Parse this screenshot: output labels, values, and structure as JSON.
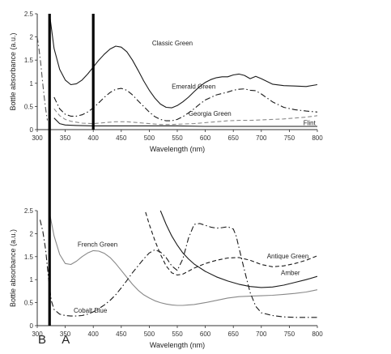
{
  "chart_data": [
    {
      "type": "line",
      "xlabel": "Wavelength (nm)",
      "ylabel": "Bottle absorbance (a.u.)",
      "xlim": [
        300,
        800
      ],
      "ylim": [
        0,
        2.5
      ],
      "xticks": [
        "300",
        "350",
        "400",
        "450",
        "500",
        "550",
        "600",
        "650",
        "700",
        "750",
        "800"
      ],
      "yticks": [
        "0",
        "0.5",
        "1",
        "1.5",
        "2",
        "2.5"
      ],
      "series": [
        {
          "name": "Classic Green",
          "color": "#1a1a1a",
          "dash": "solid",
          "x": [
            322,
            330,
            340,
            350,
            360,
            370,
            380,
            390,
            400,
            410,
            420,
            430,
            440,
            450,
            460,
            470,
            480,
            490,
            500,
            510,
            520,
            530,
            540,
            550,
            560,
            570,
            580,
            590,
            600,
            610,
            620,
            630,
            640,
            650,
            660,
            670,
            680,
            690,
            700,
            720,
            740,
            760,
            780,
            800
          ],
          "y": [
            2.5,
            1.75,
            1.3,
            1.07,
            0.97,
            0.99,
            1.07,
            1.2,
            1.35,
            1.5,
            1.63,
            1.74,
            1.8,
            1.78,
            1.68,
            1.5,
            1.28,
            1.05,
            0.85,
            0.68,
            0.55,
            0.48,
            0.47,
            0.52,
            0.6,
            0.7,
            0.82,
            0.93,
            1.02,
            1.08,
            1.12,
            1.14,
            1.14,
            1.18,
            1.2,
            1.17,
            1.1,
            1.15,
            1.1,
            0.98,
            0.95,
            0.94,
            0.93,
            0.97
          ]
        },
        {
          "name": "Emerald Green",
          "color": "#1a1a1a",
          "dash": "dashdot",
          "x": [
            330,
            340,
            350,
            360,
            370,
            380,
            390,
            400,
            410,
            420,
            430,
            440,
            450,
            460,
            470,
            480,
            490,
            500,
            510,
            520,
            530,
            540,
            550,
            560,
            570,
            580,
            590,
            600,
            620,
            640,
            650,
            660,
            670,
            680,
            690,
            700,
            720,
            740,
            760,
            780,
            800
          ],
          "y": [
            0.7,
            0.45,
            0.33,
            0.29,
            0.29,
            0.32,
            0.38,
            0.47,
            0.58,
            0.7,
            0.8,
            0.87,
            0.89,
            0.85,
            0.75,
            0.62,
            0.5,
            0.38,
            0.28,
            0.22,
            0.19,
            0.19,
            0.22,
            0.28,
            0.36,
            0.45,
            0.55,
            0.64,
            0.75,
            0.81,
            0.85,
            0.87,
            0.88,
            0.85,
            0.84,
            0.77,
            0.6,
            0.48,
            0.43,
            0.4,
            0.38
          ]
        },
        {
          "name": "Georgia Green",
          "color": "#8a8a8a",
          "dash": "dashed",
          "x": [
            330,
            340,
            350,
            360,
            380,
            400,
            420,
            440,
            460,
            480,
            500,
            520,
            540,
            560,
            580,
            600,
            620,
            640,
            660,
            680,
            700,
            720,
            740,
            760,
            780,
            800
          ],
          "y": [
            0.45,
            0.3,
            0.22,
            0.18,
            0.14,
            0.13,
            0.15,
            0.17,
            0.17,
            0.15,
            0.13,
            0.11,
            0.11,
            0.12,
            0.13,
            0.15,
            0.17,
            0.19,
            0.2,
            0.2,
            0.21,
            0.22,
            0.23,
            0.25,
            0.27,
            0.3
          ]
        },
        {
          "name": "Flint",
          "color": "#1a1a1a",
          "dash": "solid",
          "x": [
            330,
            340,
            350,
            370,
            400,
            450,
            500,
            550,
            600,
            650,
            700,
            750,
            800
          ],
          "y": [
            0.25,
            0.13,
            0.1,
            0.09,
            0.08,
            0.08,
            0.08,
            0.08,
            0.07,
            0.07,
            0.07,
            0.07,
            0.07
          ]
        },
        {
          "name": "",
          "color": "#555555",
          "dash": "dashdot",
          "x": [
            300,
            303,
            306,
            309,
            312,
            315,
            318
          ],
          "y": [
            2.0,
            1.75,
            1.45,
            1.1,
            0.75,
            0.45,
            0.2
          ]
        }
      ],
      "labels": [
        {
          "text": "Classic Green",
          "x": 505,
          "y": 1.82
        },
        {
          "text": "Emerald Green",
          "x": 540,
          "y": 0.88
        },
        {
          "text": "Georgia Green",
          "x": 570,
          "y": 0.3
        },
        {
          "text": "Flint",
          "x": 775,
          "y": 0.1
        }
      ]
    },
    {
      "type": "line",
      "xlabel": "Wavelength (nm)",
      "ylabel": "Bottle absorbance (a.u.)",
      "xlim": [
        300,
        800
      ],
      "ylim": [
        0,
        2.5
      ],
      "xticks": [
        "300",
        "350",
        "400",
        "450",
        "500",
        "550",
        "600",
        "650",
        "700",
        "750",
        "800"
      ],
      "yticks": [
        "0",
        "0.5",
        "1",
        "1.5",
        "2",
        "2.5"
      ],
      "series": [
        {
          "name": "French Green",
          "color": "#888888",
          "dash": "solid",
          "x": [
            322,
            330,
            340,
            350,
            360,
            370,
            380,
            390,
            400,
            410,
            420,
            430,
            440,
            450,
            460,
            470,
            480,
            490,
            500,
            510,
            520,
            530,
            540,
            550,
            560,
            570,
            580,
            600,
            620,
            640,
            660,
            680,
            700,
            720,
            740,
            760,
            780,
            800
          ],
          "y": [
            2.45,
            1.95,
            1.55,
            1.35,
            1.33,
            1.4,
            1.5,
            1.58,
            1.63,
            1.62,
            1.57,
            1.48,
            1.35,
            1.2,
            1.05,
            0.9,
            0.77,
            0.67,
            0.6,
            0.54,
            0.5,
            0.47,
            0.45,
            0.44,
            0.44,
            0.45,
            0.46,
            0.5,
            0.55,
            0.6,
            0.63,
            0.64,
            0.65,
            0.66,
            0.68,
            0.7,
            0.73,
            0.78
          ]
        },
        {
          "name": "Cobalt Blue",
          "color": "#1a1a1a",
          "dash": "dashdot",
          "x": [
            305,
            310,
            315,
            320,
            325,
            330,
            340,
            350,
            360,
            370,
            380,
            390,
            400,
            410,
            420,
            430,
            440,
            450,
            460,
            470,
            480,
            490,
            500,
            510,
            520,
            530,
            540,
            550,
            560,
            570,
            580,
            590,
            600,
            610,
            620,
            630,
            640,
            650,
            655,
            660,
            670,
            680,
            690,
            700,
            720,
            740,
            760,
            780,
            800
          ],
          "y": [
            2.3,
            2.05,
            1.65,
            1.05,
            0.55,
            0.35,
            0.25,
            0.22,
            0.21,
            0.21,
            0.22,
            0.25,
            0.3,
            0.37,
            0.45,
            0.55,
            0.67,
            0.82,
            0.98,
            1.15,
            1.3,
            1.45,
            1.58,
            1.65,
            1.6,
            1.48,
            1.3,
            1.2,
            1.45,
            1.9,
            2.2,
            2.22,
            2.18,
            2.14,
            2.12,
            2.13,
            2.15,
            2.1,
            1.95,
            1.7,
            1.2,
            0.72,
            0.42,
            0.28,
            0.22,
            0.19,
            0.18,
            0.18,
            0.18
          ]
        },
        {
          "name": "Antique Green",
          "color": "#1a1a1a",
          "dash": "dashed",
          "x": [
            490,
            500,
            510,
            520,
            530,
            540,
            550,
            560,
            580,
            600,
            620,
            640,
            660,
            680,
            700,
            720,
            740,
            760,
            780,
            800
          ],
          "y": [
            2.6,
            2.2,
            1.85,
            1.55,
            1.3,
            1.15,
            1.1,
            1.12,
            1.25,
            1.35,
            1.42,
            1.47,
            1.48,
            1.42,
            1.33,
            1.28,
            1.3,
            1.35,
            1.42,
            1.52
          ]
        },
        {
          "name": "Amber",
          "color": "#1a1a1a",
          "dash": "solid",
          "x": [
            520,
            530,
            540,
            550,
            560,
            570,
            580,
            600,
            620,
            640,
            660,
            680,
            700,
            720,
            740,
            760,
            780,
            800
          ],
          "y": [
            2.5,
            2.2,
            1.95,
            1.75,
            1.58,
            1.45,
            1.34,
            1.18,
            1.06,
            0.97,
            0.9,
            0.85,
            0.83,
            0.84,
            0.88,
            0.94,
            1.0,
            1.07
          ]
        }
      ],
      "labels": [
        {
          "text": "French Green",
          "x": 372,
          "y": 1.72
        },
        {
          "text": "Cobalt Blue",
          "x": 365,
          "y": 0.28
        },
        {
          "text": "Antique Green",
          "x": 710,
          "y": 1.46
        },
        {
          "text": "Amber",
          "x": 735,
          "y": 1.1
        }
      ]
    }
  ],
  "markers": {
    "bar_a_nm": 400,
    "bar_b_nm": 322,
    "label_a": "A",
    "label_b": "B"
  }
}
